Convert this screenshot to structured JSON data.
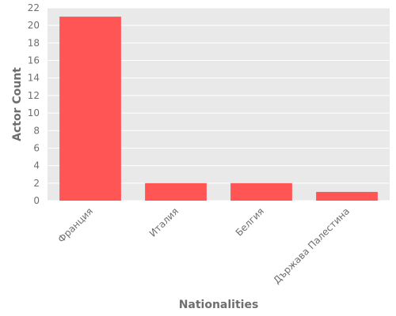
{
  "chart_data": {
    "type": "bar",
    "title": "",
    "xlabel": "Nationalities",
    "ylabel": "Actor Count",
    "categories": [
      "Франция",
      "Италия",
      "Белгия",
      "Държава Палестина"
    ],
    "values": [
      21,
      2,
      2,
      1
    ],
    "ylim": [
      0,
      22
    ],
    "yticks": [
      0,
      2,
      4,
      6,
      8,
      10,
      12,
      14,
      16,
      18,
      20,
      22
    ],
    "grid": true,
    "legend": "none",
    "colors": {
      "bar": "#ff5555",
      "background": "#e9e9e9",
      "grid": "#ffffff",
      "text": "#6e6e6e"
    }
  }
}
